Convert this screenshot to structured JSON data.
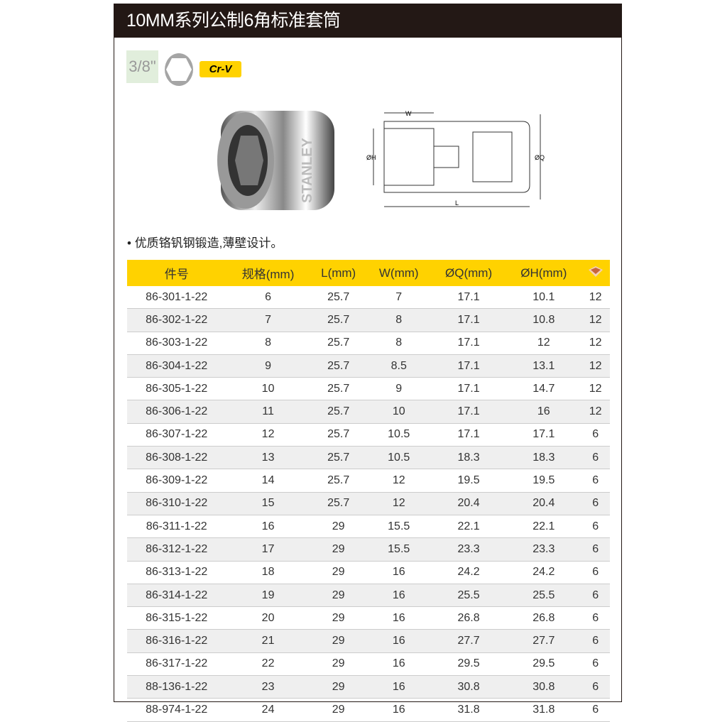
{
  "title": "10MM系列公制6角标准套筒",
  "badges": {
    "drive_size": "3/8\"",
    "material": "Cr-V",
    "hex_icon": "hexagon-icon"
  },
  "product": {
    "brand": "STANLEY"
  },
  "diagram": {
    "labels": {
      "w": "W",
      "h": "ØH",
      "q": "ØQ",
      "l": "L"
    }
  },
  "feature": "优质铬钒钢锻造,薄壁设计。",
  "table": {
    "headers": [
      "件号",
      "规格(mm)",
      "L(mm)",
      "W(mm)",
      "ØQ(mm)",
      "ØH(mm)"
    ],
    "last_header_icon": "box-icon",
    "rows": [
      [
        "86-301-1-22",
        "6",
        "25.7",
        "7",
        "17.1",
        "10.1",
        "12"
      ],
      [
        "86-302-1-22",
        "7",
        "25.7",
        "8",
        "17.1",
        "10.8",
        "12"
      ],
      [
        "86-303-1-22",
        "8",
        "25.7",
        "8",
        "17.1",
        "12",
        "12"
      ],
      [
        "86-304-1-22",
        "9",
        "25.7",
        "8.5",
        "17.1",
        "13.1",
        "12"
      ],
      [
        "86-305-1-22",
        "10",
        "25.7",
        "9",
        "17.1",
        "14.7",
        "12"
      ],
      [
        "86-306-1-22",
        "11",
        "25.7",
        "10",
        "17.1",
        "16",
        "12"
      ],
      [
        "86-307-1-22",
        "12",
        "25.7",
        "10.5",
        "17.1",
        "17.1",
        "6"
      ],
      [
        "86-308-1-22",
        "13",
        "25.7",
        "10.5",
        "18.3",
        "18.3",
        "6"
      ],
      [
        "86-309-1-22",
        "14",
        "25.7",
        "12",
        "19.5",
        "19.5",
        "6"
      ],
      [
        "86-310-1-22",
        "15",
        "25.7",
        "12",
        "20.4",
        "20.4",
        "6"
      ],
      [
        "86-311-1-22",
        "16",
        "29",
        "15.5",
        "22.1",
        "22.1",
        "6"
      ],
      [
        "86-312-1-22",
        "17",
        "29",
        "15.5",
        "23.3",
        "23.3",
        "6"
      ],
      [
        "86-313-1-22",
        "18",
        "29",
        "16",
        "24.2",
        "24.2",
        "6"
      ],
      [
        "86-314-1-22",
        "19",
        "29",
        "16",
        "25.5",
        "25.5",
        "6"
      ],
      [
        "86-315-1-22",
        "20",
        "29",
        "16",
        "26.8",
        "26.8",
        "6"
      ],
      [
        "86-316-1-22",
        "21",
        "29",
        "16",
        "27.7",
        "27.7",
        "6"
      ],
      [
        "86-317-1-22",
        "22",
        "29",
        "16",
        "29.5",
        "29.5",
        "6"
      ],
      [
        "88-136-1-22",
        "23",
        "29",
        "16",
        "30.8",
        "30.8",
        "6"
      ],
      [
        "88-974-1-22",
        "24",
        "29",
        "16",
        "31.8",
        "31.8",
        "6"
      ]
    ]
  }
}
